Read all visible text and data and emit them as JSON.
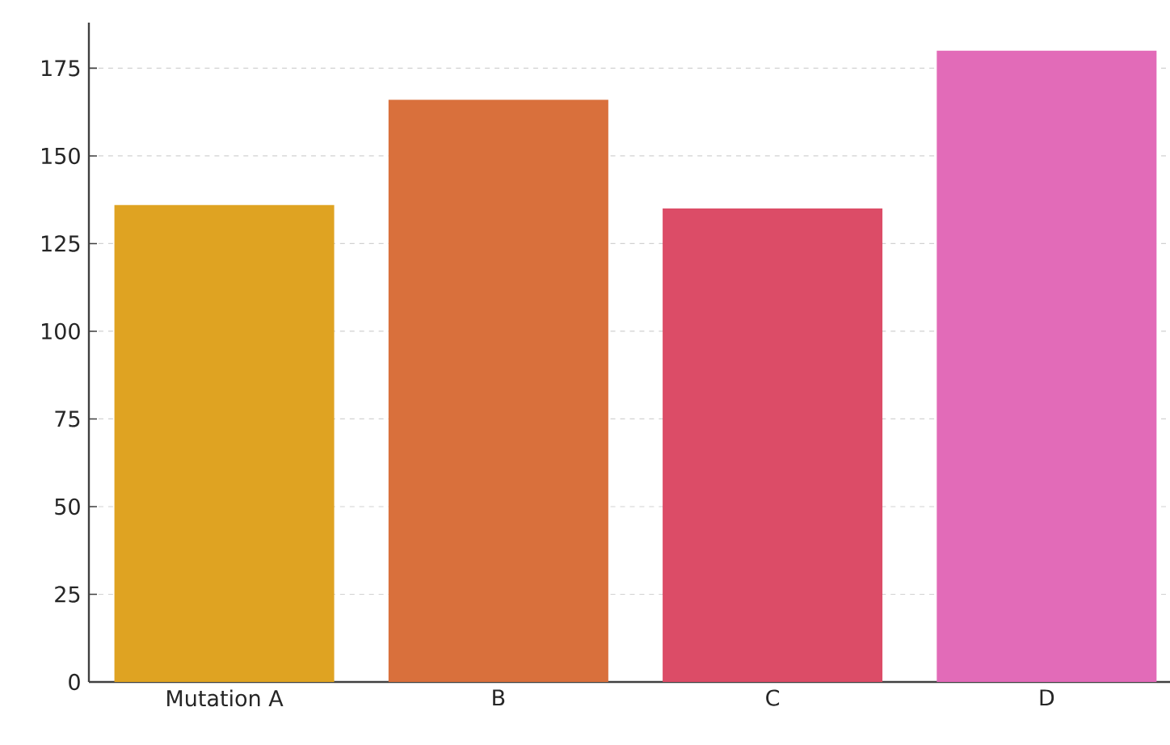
{
  "chart_data": {
    "type": "bar",
    "categories": [
      "Mutation A",
      "B",
      "C",
      "D"
    ],
    "values": [
      136,
      166,
      135,
      180
    ],
    "colors": [
      "#dfa322",
      "#d9703c",
      "#dc4c67",
      "#e26bb8"
    ],
    "ylim": [
      0,
      188
    ],
    "yticks": [
      0,
      25,
      50,
      75,
      100,
      125,
      150,
      175
    ],
    "grid": "y"
  }
}
